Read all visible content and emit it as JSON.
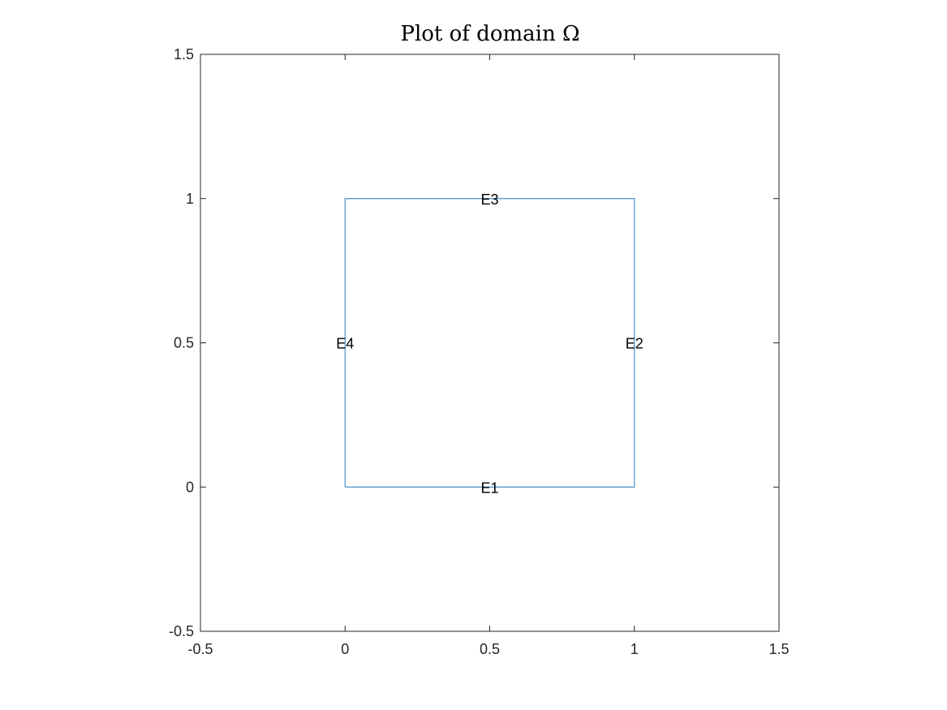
{
  "chart_data": {
    "type": "line",
    "title": "Plot of domain Ω",
    "xlabel": "",
    "ylabel": "",
    "xlim": [
      -0.5,
      1.5
    ],
    "ylim": [
      -0.5,
      1.5
    ],
    "xticks": [
      -0.5,
      0,
      0.5,
      1,
      1.5
    ],
    "yticks": [
      -0.5,
      0,
      0.5,
      1,
      1.5
    ],
    "xtick_labels": [
      "-0.5",
      "0",
      "0.5",
      "1",
      "1.5"
    ],
    "ytick_labels": [
      "-0.5",
      "0",
      "0.5",
      "1",
      "1.5"
    ],
    "grid": false,
    "series": [
      {
        "x": [
          0,
          1,
          1,
          0,
          0
        ],
        "y": [
          0,
          0,
          1,
          1,
          0
        ],
        "color": "#4a90c9"
      }
    ],
    "annotations": [
      {
        "text": "E1",
        "x": 0.5,
        "y": 0
      },
      {
        "text": "E2",
        "x": 1,
        "y": 0.5
      },
      {
        "text": "E3",
        "x": 0.5,
        "y": 1
      },
      {
        "text": "E4",
        "x": 0,
        "y": 0.5
      }
    ]
  }
}
